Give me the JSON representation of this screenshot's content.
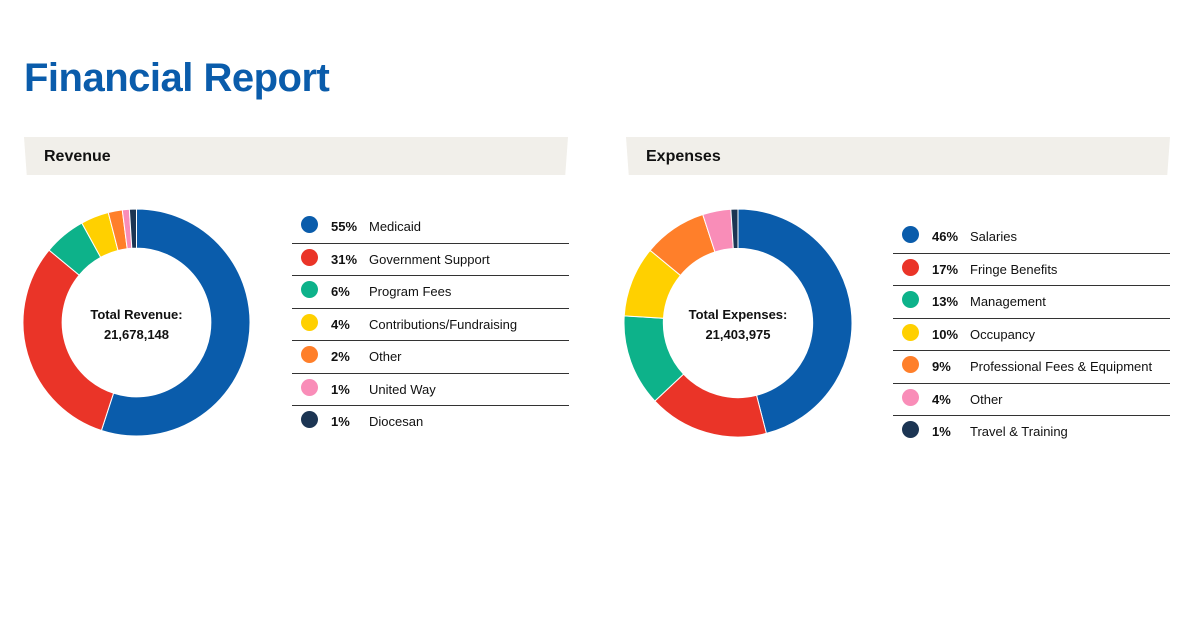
{
  "title": "Financial Report",
  "revenue": {
    "header": "Revenue",
    "center_label": "Total Revenue:",
    "center_value": "21,678,148"
  },
  "expenses": {
    "header": "Expenses",
    "center_label": "Total Expenses:",
    "center_value": "21,403,975"
  },
  "chart_data": [
    {
      "type": "pie",
      "title": "Revenue",
      "categories": [
        "Medicaid",
        "Government Support",
        "Program Fees",
        "Contributions/Fundraising",
        "Other",
        "United Way",
        "Diocesan"
      ],
      "values": [
        55,
        31,
        6,
        4,
        2,
        1,
        1
      ],
      "value_labels": [
        "55%",
        "31%",
        "6%",
        "4%",
        "2%",
        "1%",
        "1%"
      ],
      "colors": [
        "#0a5cab",
        "#ea3428",
        "#0db28a",
        "#ffd000",
        "#ff7f2a",
        "#f98db8",
        "#1c3553"
      ],
      "total": "21,678,148"
    },
    {
      "type": "pie",
      "title": "Expenses",
      "categories": [
        "Salaries",
        "Fringe Benefits",
        "Management",
        "Occupancy",
        "Professional Fees & Equipment",
        "Other",
        "Travel & Training"
      ],
      "values": [
        46,
        17,
        13,
        10,
        9,
        4,
        1
      ],
      "value_labels": [
        "46%",
        "17%",
        "13%",
        "10%",
        "9%",
        "4%",
        "1%"
      ],
      "colors": [
        "#0a5cab",
        "#ea3428",
        "#0db28a",
        "#ffd000",
        "#ff7f2a",
        "#f98db8",
        "#1c3553"
      ],
      "total": "21,403,975"
    }
  ]
}
